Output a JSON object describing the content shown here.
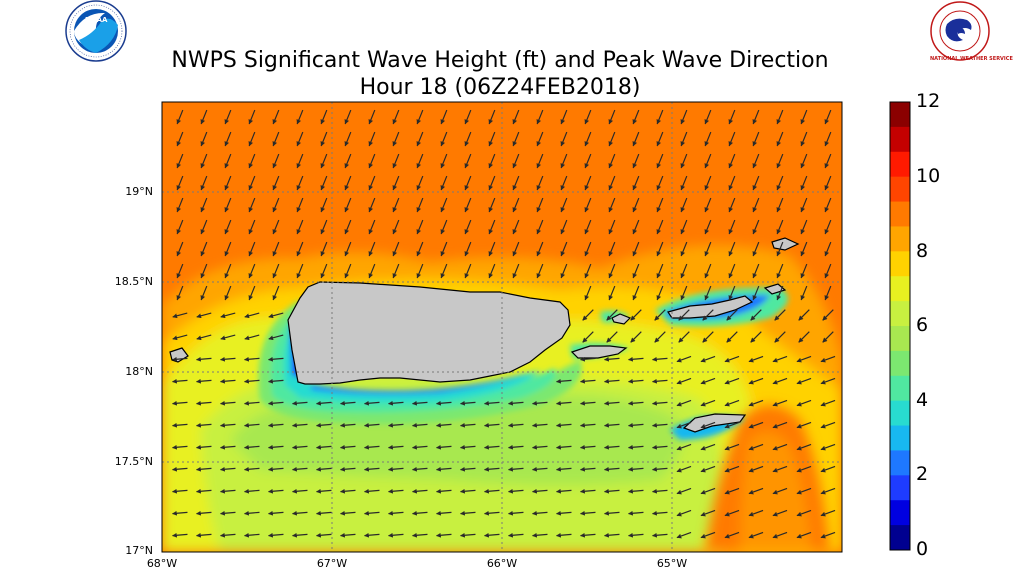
{
  "header": {
    "title_line1": "NWPS Significant Wave Height (ft) and Peak Wave Direction",
    "title_line2": "Hour 18 (06Z24FEB2018)",
    "left_logo": "NOAA",
    "right_logo": "NATIONAL WEATHER SERVICE"
  },
  "map": {
    "lat_labels": [
      "19°N",
      "18.5°N",
      "18°N",
      "17.5°N",
      "17°N"
    ],
    "lon_labels": [
      "68°W",
      "67°W",
      "66°W",
      "65°W"
    ],
    "land_color": "#c8c8c8",
    "arrow_direction": "toward southwest / west",
    "dominant_open_ocean_color": "#ff7a00"
  },
  "colorbar": {
    "labels": [
      "12",
      "10",
      "8",
      "6",
      "4",
      "2",
      "0"
    ],
    "bands": [
      "#8b0000",
      "#c40000",
      "#ff1a00",
      "#ff4500",
      "#ff7a00",
      "#ffa500",
      "#ffd200",
      "#e8f020",
      "#c8f040",
      "#a8e850",
      "#7ce870",
      "#50e8a0",
      "#28dcd0",
      "#18b8f0",
      "#1e78ff",
      "#1e3cff",
      "#0000e0",
      "#000090"
    ]
  }
}
